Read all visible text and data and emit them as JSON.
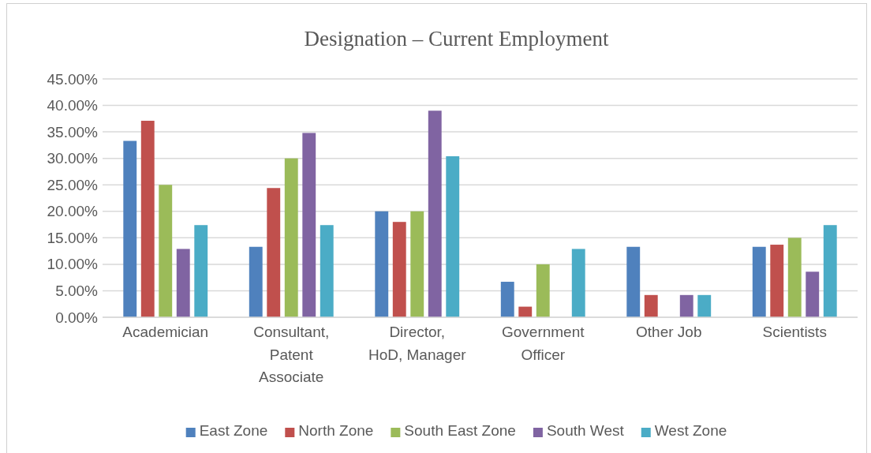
{
  "chart_data": {
    "type": "bar",
    "title": "Designation – Current Employment",
    "categories": [
      "Academician",
      "Consultant, Patent Associate",
      "Director, HoD, Manager",
      "Government Officer",
      "Other Job",
      "Scientists"
    ],
    "series": [
      {
        "name": "East Zone",
        "color": "#4f81bd",
        "values": [
          33.3,
          13.3,
          20,
          6.7,
          13.3,
          13.3
        ]
      },
      {
        "name": "North Zone",
        "color": "#c0504d",
        "values": [
          37.1,
          24.4,
          18.0,
          2.0,
          4.2,
          13.7
        ]
      },
      {
        "name": "South East Zone",
        "color": "#9bbb59",
        "values": [
          25,
          30,
          20,
          10,
          0,
          15
        ]
      },
      {
        "name": "South West",
        "color": "#8064a2",
        "values": [
          12.9,
          34.8,
          39.0,
          0,
          4.2,
          8.6
        ]
      },
      {
        "name": "West Zone",
        "color": "#4bacc6",
        "values": [
          17.4,
          17.4,
          30.4,
          12.9,
          4.2,
          17.4
        ]
      }
    ],
    "ylim": [
      0,
      45
    ],
    "yticks": [
      {
        "value": 0,
        "label": "0.00%"
      },
      {
        "value": 5,
        "label": "5.00%"
      },
      {
        "value": 10,
        "label": "10.00%"
      },
      {
        "value": 15,
        "label": "15.00%"
      },
      {
        "value": 20,
        "label": "20.00%"
      },
      {
        "value": 25,
        "label": "25.00%"
      },
      {
        "value": 30,
        "label": "30.00%"
      },
      {
        "value": 35,
        "label": "35.00%"
      },
      {
        "value": 40,
        "label": "40.00%"
      },
      {
        "value": 45,
        "label": "45.00%"
      }
    ],
    "grid": "y",
    "legend": "bottom"
  }
}
